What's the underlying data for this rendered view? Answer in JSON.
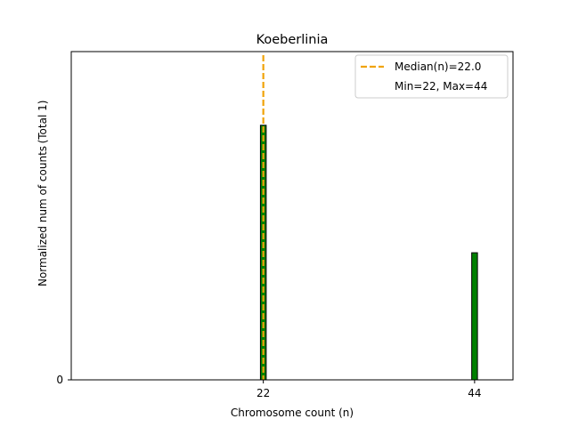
{
  "chart_data": {
    "type": "bar",
    "title": "Koeberlinia",
    "xlabel": "Chromosome count (n)",
    "ylabel": "Normalized num of counts",
    "ylabel_note": "(Total 1)",
    "x": [
      22,
      44
    ],
    "values": [
      0.667,
      0.333
    ],
    "xlim": [
      2,
      48
    ],
    "ylim": [
      0,
      0.86
    ],
    "xticks": [
      22,
      44
    ],
    "yticks": [
      0
    ],
    "bar_width": 0.6,
    "bar_color": "#008000",
    "bar_edge_color": "#000000",
    "median": 22.0,
    "median_color": "#f0a30a",
    "legend": {
      "position": "top-right",
      "entries": [
        "Median(n)=22.0",
        "Min=22, Max=44"
      ]
    },
    "grid": false
  }
}
